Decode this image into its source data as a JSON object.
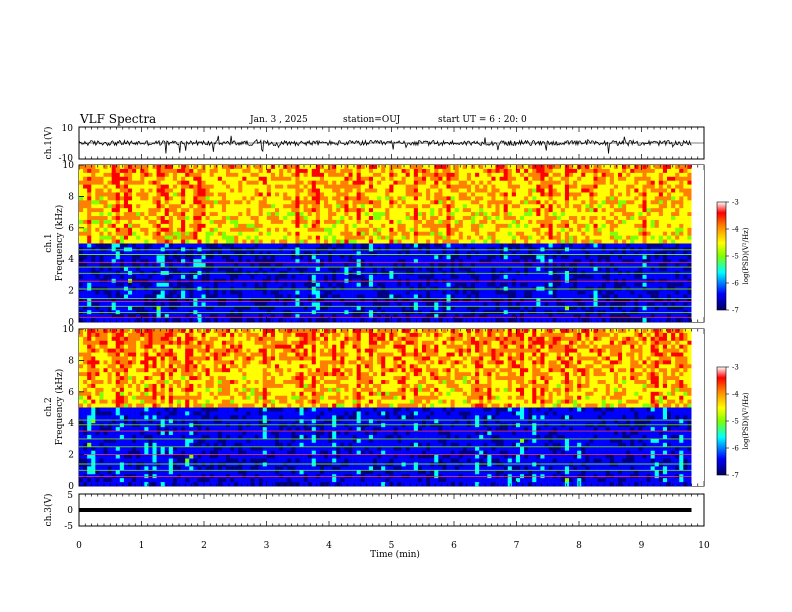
{
  "header": {
    "title": "VLF Spectra",
    "date": "Jan. 3 , 2025",
    "station": "station=OUJ",
    "start": "start UT = 6 : 20: 0"
  },
  "chart_data": [
    {
      "type": "line",
      "panel": "ch1-waveform",
      "ylabel": "ch.1(V)",
      "ylim": [
        -10,
        10
      ],
      "yticks": [
        "10",
        "-10"
      ],
      "xlim": [
        0,
        10
      ],
      "x_end": 9.8,
      "baseline": 0,
      "noise_amplitude_approx": 2,
      "series_color": "#000000"
    },
    {
      "type": "heatmap",
      "panel": "ch1-spectrogram",
      "ylabel_lines": [
        "ch.1",
        "Frequency (kHz)"
      ],
      "ylim": [
        0,
        10
      ],
      "yticks": [
        "0",
        "2",
        "4",
        "6",
        "8",
        "10"
      ],
      "xlim": [
        0,
        10
      ],
      "x_end": 9.8,
      "colorbar": {
        "label": "log(PSD)(V²/Hz)",
        "range": [
          -7,
          -3
        ],
        "ticks": [
          "-3",
          "-4",
          "-5",
          "-6",
          "-7"
        ],
        "colors": [
          "#000080",
          "#0000ff",
          "#00ffff",
          "#7fff00",
          "#ffff00",
          "#ff8000",
          "#ff0000",
          "#ffffff"
        ]
      },
      "low_band_kHz": [
        0,
        5
      ],
      "low_band_level": -6.3,
      "high_band_kHz": [
        5,
        10
      ],
      "high_band_level": -4.2,
      "hum_lines_kHz": [
        0.3,
        0.6,
        1.0,
        1.3,
        1.5,
        2.1,
        2.6,
        3.1,
        3.5,
        3.8,
        4.3,
        4.6
      ]
    },
    {
      "type": "heatmap",
      "panel": "ch2-spectrogram",
      "ylabel_lines": [
        "ch.2",
        "Frequency (kHz)"
      ],
      "ylim": [
        0,
        10
      ],
      "yticks": [
        "0",
        "2",
        "4",
        "6",
        "8",
        "10"
      ],
      "xlim": [
        0,
        10
      ],
      "x_end": 9.8,
      "colorbar": {
        "label": "log(PSD)(V²/Hz)",
        "range": [
          -7,
          -3
        ],
        "ticks": [
          "-3",
          "-4",
          "-5",
          "-6",
          "-7"
        ],
        "colors": [
          "#000080",
          "#0000ff",
          "#00ffff",
          "#7fff00",
          "#ffff00",
          "#ff8000",
          "#ff0000",
          "#ffffff"
        ]
      },
      "low_band_kHz": [
        0,
        5
      ],
      "low_band_level": -6.2,
      "high_band_kHz": [
        5,
        10
      ],
      "high_band_level": -4.1,
      "hum_lines_kHz": [
        0.6,
        1.0,
        1.4,
        2.0,
        2.5,
        3.0,
        3.5,
        3.9,
        4.2
      ]
    },
    {
      "type": "line",
      "panel": "ch3-waveform",
      "ylabel": "ch.3(V)",
      "ylim": [
        -5,
        5
      ],
      "yticks": [
        "5",
        "0",
        "-5"
      ],
      "xlim": [
        0,
        10
      ],
      "x_end": 9.8,
      "baseline": 0,
      "series_color": "#000000"
    }
  ],
  "xaxis": {
    "label": "Time (min)",
    "ticks": [
      "0",
      "1",
      "2",
      "3",
      "4",
      "5",
      "6",
      "7",
      "8",
      "9",
      "10"
    ]
  }
}
